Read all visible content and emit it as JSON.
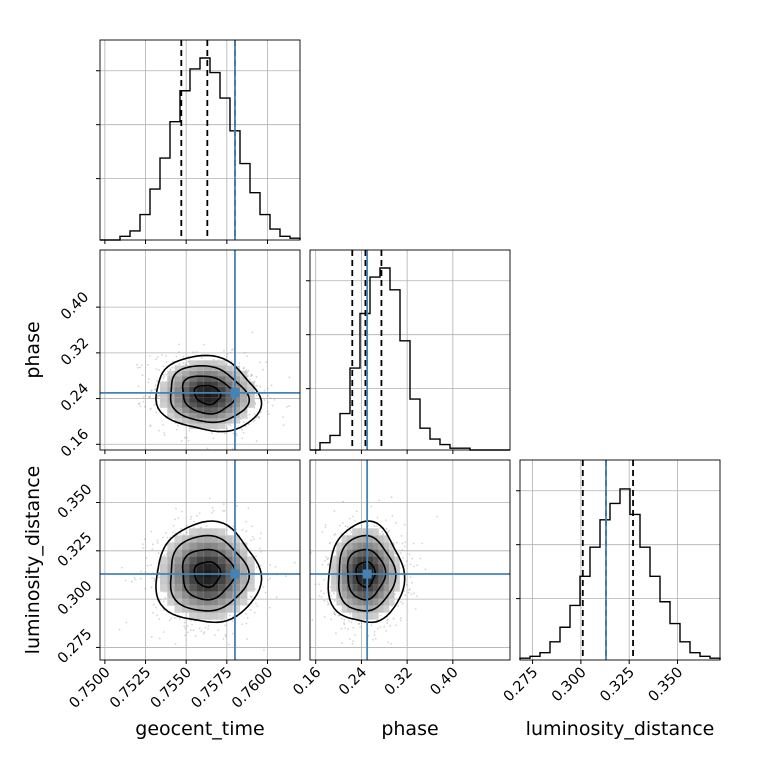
{
  "chart_data": {
    "type": "corner",
    "parameters": [
      "geocent_time",
      "phase",
      "luminosity_distance"
    ],
    "axis_labels": {
      "geocent_time": "geocent_time",
      "phase": "phase",
      "luminosity_distance": "luminosity_distance"
    },
    "ranges": {
      "geocent_time": [
        0.7497,
        0.762
      ],
      "phase": [
        0.15,
        0.5
      ],
      "luminosity_distance": [
        0.2685,
        0.372
      ]
    },
    "ticks": {
      "geocent_time": [
        {
          "v": 0.75,
          "label": "0.7500"
        },
        {
          "v": 0.7525,
          "label": "0.7525"
        },
        {
          "v": 0.755,
          "label": "0.7550"
        },
        {
          "v": 0.7575,
          "label": "0.7575"
        },
        {
          "v": 0.76,
          "label": "0.7600"
        }
      ],
      "phase": [
        {
          "v": 0.16,
          "label": "0.16"
        },
        {
          "v": 0.24,
          "label": "0.24"
        },
        {
          "v": 0.32,
          "label": "0.32"
        },
        {
          "v": 0.4,
          "label": "0.40"
        }
      ],
      "luminosity_distance": [
        {
          "v": 0.275,
          "label": "0.275"
        },
        {
          "v": 0.3,
          "label": "0.300"
        },
        {
          "v": 0.325,
          "label": "0.325"
        },
        {
          "v": 0.35,
          "label": "0.350"
        }
      ]
    },
    "truths": {
      "geocent_time": 0.758,
      "phase": 0.25,
      "luminosity_distance": 0.313
    },
    "quantiles": {
      "geocent_time": [
        0.7547,
        0.7563,
        0.758
      ],
      "phase": [
        0.224,
        0.247,
        0.275
      ],
      "luminosity_distance": [
        0.301,
        0.313,
        0.327
      ]
    },
    "histograms": {
      "geocent_time": [
        0,
        0,
        0.02,
        0.05,
        0.14,
        0.28,
        0.45,
        0.65,
        0.82,
        0.94,
        1.0,
        0.92,
        0.78,
        0.6,
        0.42,
        0.26,
        0.14,
        0.06,
        0.02,
        0.01
      ],
      "phase": [
        0,
        0.04,
        0.08,
        0.2,
        0.45,
        0.75,
        0.95,
        1.0,
        0.88,
        0.6,
        0.28,
        0.12,
        0.06,
        0.03,
        0.01,
        0.01,
        0,
        0,
        0,
        0
      ],
      "luminosity_distance": [
        0.01,
        0.02,
        0.04,
        0.1,
        0.18,
        0.3,
        0.46,
        0.62,
        0.77,
        0.86,
        0.94,
        0.8,
        0.62,
        0.46,
        0.32,
        0.2,
        0.1,
        0.04,
        0.02,
        0.01
      ]
    },
    "posterior_centers": {
      "geocent_time": 0.7563,
      "phase": 0.247,
      "luminosity_distance": 0.313
    },
    "posterior_sigmas": {
      "geocent_time": 0.0016,
      "phase": 0.033,
      "luminosity_distance": 0.013
    },
    "contour_levels_sigma": [
      0.5,
      1.0,
      1.5,
      2.0
    ],
    "colors": {
      "truth": "#4682b4",
      "hist": "#000000",
      "quantile": "#000000",
      "grid": "#b0b0b0",
      "scatter": "#888888"
    }
  }
}
